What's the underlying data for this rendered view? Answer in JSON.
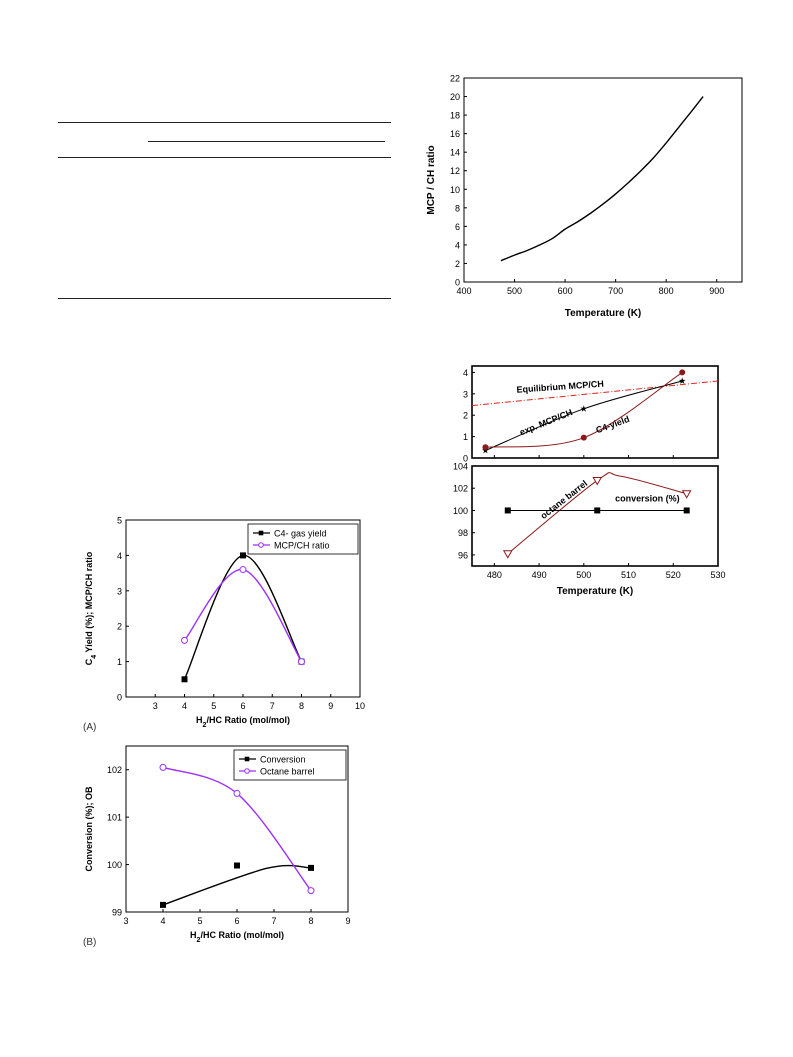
{
  "panel_labels": {
    "a": "(A)",
    "b": "(B)"
  },
  "chart_data": [
    {
      "type": "line",
      "xlabel": "Temperature (K)",
      "ylabel": "MCP / CH ratio",
      "xlim": [
        400,
        950
      ],
      "ylim": [
        0,
        22
      ],
      "xticks": [
        400,
        500,
        600,
        700,
        800,
        900
      ],
      "yticks": [
        0,
        2,
        4,
        6,
        8,
        10,
        12,
        14,
        16,
        18,
        20,
        22
      ],
      "grid": false,
      "series": [
        {
          "x": [
            473,
            500,
            525,
            550,
            575,
            600,
            625,
            650,
            675,
            700,
            725,
            750,
            775,
            800,
            825,
            850,
            873
          ],
          "y": [
            2.3,
            2.9,
            3.4,
            4.0,
            4.7,
            5.7,
            6.5,
            7.4,
            8.4,
            9.5,
            10.7,
            12.0,
            13.4,
            15.0,
            16.7,
            18.4,
            20.0
          ]
        }
      ]
    },
    {
      "type": "line",
      "xlabel": "Temperature (K)",
      "xlim": [
        475,
        530
      ],
      "xticks": [
        480,
        490,
        500,
        510,
        520,
        530
      ],
      "top_panel": {
        "ylim": [
          0,
          4.3
        ],
        "yticks": [
          0,
          1,
          2,
          3,
          4
        ],
        "annotations": [
          "Equilibrium MCP/CH",
          "exp. MCP/CH",
          "C4-yield"
        ],
        "series": [
          {
            "name": "Equilibrium MCP/CH",
            "style": "dash-dot",
            "color": "#e2231a",
            "x": [
              475,
              530
            ],
            "y": [
              2.45,
              3.6
            ]
          },
          {
            "name": "exp. MCP/CH",
            "marker": "star",
            "color": "#000000",
            "x": [
              478,
              500,
              522
            ],
            "y": [
              0.35,
              2.3,
              3.6
            ]
          },
          {
            "name": "C4-yield",
            "marker": "circle",
            "color": "#8b1a1a",
            "x": [
              478,
              500,
              522
            ],
            "y": [
              0.5,
              0.95,
              4.0
            ]
          }
        ]
      },
      "bottom_panel": {
        "ylim": [
          95,
          104
        ],
        "yticks": [
          96,
          98,
          100,
          102,
          104
        ],
        "annotations": [
          "octane barrel",
          "conversion (%)"
        ],
        "series": [
          {
            "name": "octane barrel",
            "marker": "triangle-down",
            "color": "#8b1a1a",
            "x": [
              483,
              503,
              523
            ],
            "y": [
              96.1,
              102.7,
              101.5
            ]
          },
          {
            "name": "conversion (%)",
            "marker": "square",
            "color": "#000000",
            "x": [
              483,
              503,
              523
            ],
            "y": [
              100.0,
              100.0,
              100.0
            ]
          }
        ]
      }
    },
    {
      "type": "line",
      "xlabel": "H2/HC Ratio (mol/mol)",
      "ylabel": "C4 Yield (%); MCP/CH ratio",
      "xlim": [
        2,
        10
      ],
      "ylim": [
        0,
        5
      ],
      "xticks": [
        3,
        4,
        5,
        6,
        7,
        8,
        9,
        10
      ],
      "yticks": [
        0,
        1,
        2,
        3,
        4,
        5
      ],
      "legend": "top-right",
      "series": [
        {
          "name": "C4- gas yield",
          "color": "#000000",
          "marker": "square",
          "x": [
            4,
            6,
            8
          ],
          "y": [
            0.5,
            4.0,
            1.0
          ]
        },
        {
          "name": "MCP/CH ratio",
          "color": "#9b30ff",
          "marker": "open-circle",
          "x": [
            4,
            6,
            8
          ],
          "y": [
            1.6,
            3.6,
            1.0
          ]
        }
      ]
    },
    {
      "type": "line",
      "xlabel": "H2/HC Ratio (mol/mol)",
      "ylabel": "Conversion (%); OB",
      "xlim": [
        3,
        9
      ],
      "ylim": [
        99,
        102.5
      ],
      "xticks": [
        3,
        4,
        5,
        6,
        7,
        8,
        9
      ],
      "yticks": [
        99,
        100,
        101,
        102
      ],
      "legend": "top-right",
      "series": [
        {
          "name": "Conversion",
          "color": "#000000",
          "marker": "square",
          "x": [
            4,
            6,
            8
          ],
          "y": [
            99.15,
            99.98,
            99.93
          ]
        },
        {
          "name": "Octane barrel",
          "color": "#9b30ff",
          "marker": "open-circle",
          "x": [
            4,
            6,
            8
          ],
          "y": [
            102.05,
            101.5,
            99.45
          ]
        }
      ]
    }
  ]
}
